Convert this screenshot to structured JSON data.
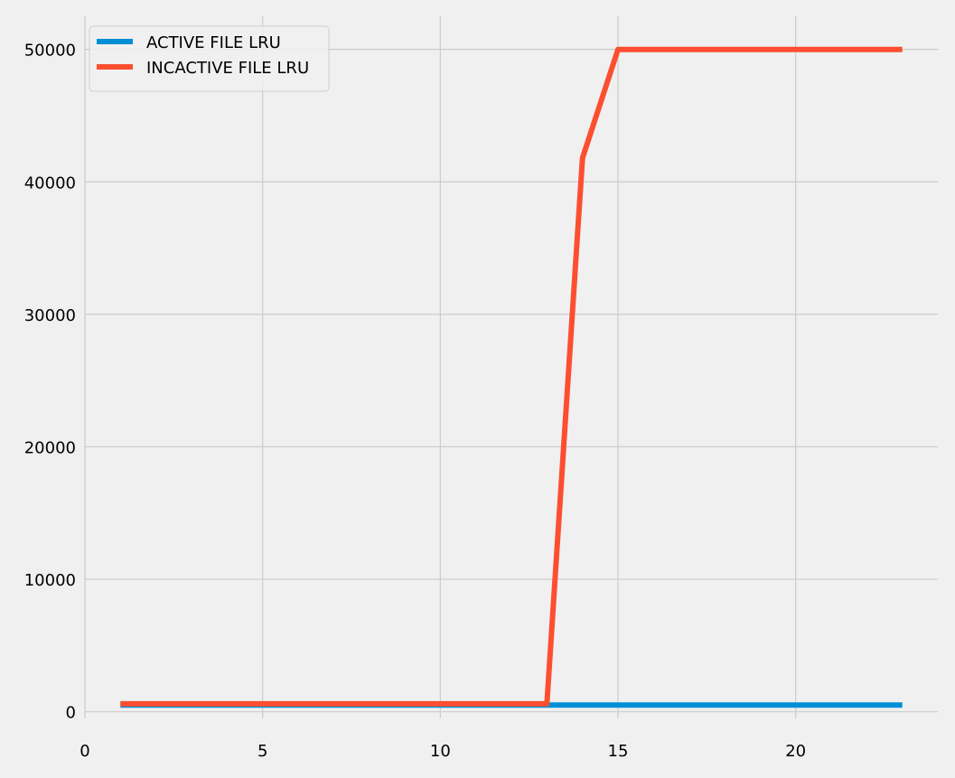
{
  "chart_data": {
    "type": "line",
    "title": "",
    "xlabel": "",
    "ylabel": "",
    "xlim": [
      0,
      24
    ],
    "ylim": [
      -500,
      52500
    ],
    "xticks": [
      0,
      5,
      10,
      15,
      20
    ],
    "yticks": [
      0,
      10000,
      20000,
      30000,
      40000,
      50000
    ],
    "xtick_labels": [
      "0",
      "5",
      "10",
      "15",
      "20"
    ],
    "ytick_labels": [
      "0",
      "10000",
      "20000",
      "30000",
      "40000",
      "50000"
    ],
    "grid": true,
    "legend_position": "top-left",
    "background_color": "#f0f0f0",
    "grid_color": "#cbcbcb",
    "x": [
      1,
      2,
      3,
      4,
      5,
      6,
      7,
      8,
      9,
      10,
      11,
      12,
      13,
      14,
      15,
      16,
      17,
      18,
      19,
      20,
      21,
      22,
      23
    ],
    "series": [
      {
        "name": "ACTIVE FILE LRU",
        "color": "#008fd5",
        "values": [
          500,
          500,
          500,
          500,
          500,
          500,
          500,
          500,
          500,
          500,
          500,
          500,
          500,
          500,
          500,
          500,
          500,
          500,
          500,
          500,
          500,
          500,
          500
        ]
      },
      {
        "name": "INCACTIVE FILE LRU",
        "color": "#fc4f30",
        "values": [
          600,
          600,
          600,
          600,
          600,
          600,
          600,
          600,
          600,
          600,
          600,
          600,
          600,
          41800,
          50000,
          50000,
          50000,
          50000,
          50000,
          50000,
          50000,
          50000,
          50000
        ]
      }
    ]
  }
}
